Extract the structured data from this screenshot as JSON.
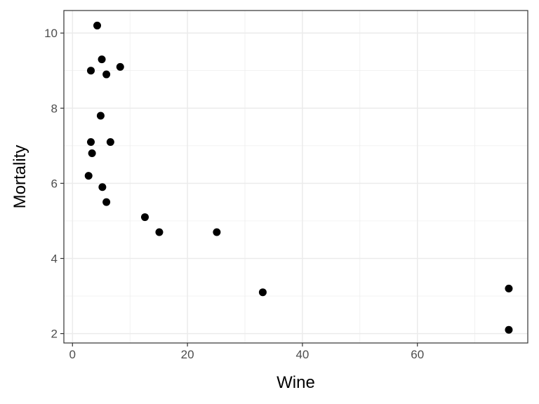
{
  "chart_data": {
    "type": "scatter",
    "title": "",
    "xlabel": "Wine",
    "ylabel": "Mortality",
    "xlim": [
      -1.5,
      79.2
    ],
    "ylim": [
      1.75,
      10.6
    ],
    "x_ticks": [
      0,
      20,
      40,
      60
    ],
    "y_ticks": [
      2,
      4,
      6,
      8,
      10
    ],
    "x_tick_labels": [
      "0",
      "20",
      "40",
      "60"
    ],
    "y_tick_labels": [
      "2",
      "4",
      "6",
      "8",
      "10"
    ],
    "grid": true,
    "legend": "none",
    "colors": {
      "point": "#000000",
      "grid": "#ebebeb",
      "border": "#333333",
      "background": "#ffffff"
    },
    "points": [
      {
        "x": 2.8,
        "y": 6.2
      },
      {
        "x": 3.2,
        "y": 9.0
      },
      {
        "x": 3.2,
        "y": 7.1
      },
      {
        "x": 3.4,
        "y": 6.8
      },
      {
        "x": 4.3,
        "y": 10.2
      },
      {
        "x": 4.9,
        "y": 7.8
      },
      {
        "x": 5.1,
        "y": 9.3
      },
      {
        "x": 5.2,
        "y": 5.9
      },
      {
        "x": 5.9,
        "y": 8.9
      },
      {
        "x": 5.9,
        "y": 5.5
      },
      {
        "x": 6.6,
        "y": 7.1
      },
      {
        "x": 8.3,
        "y": 9.1
      },
      {
        "x": 12.6,
        "y": 5.1
      },
      {
        "x": 15.1,
        "y": 4.7
      },
      {
        "x": 25.1,
        "y": 4.7
      },
      {
        "x": 33.1,
        "y": 3.1
      },
      {
        "x": 75.9,
        "y": 3.2
      },
      {
        "x": 75.9,
        "y": 2.1
      }
    ]
  }
}
